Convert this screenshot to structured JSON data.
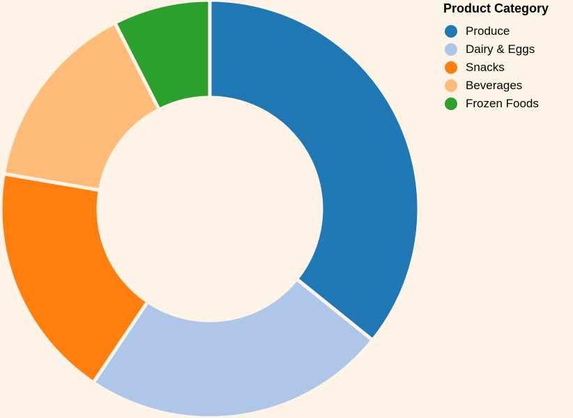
{
  "chart_data": {
    "type": "pie",
    "donut": true,
    "legend_title": "Product Category",
    "legend_position": "top-right",
    "series": [
      {
        "name": "Produce",
        "value": 35.8,
        "color": "#1f77b4"
      },
      {
        "name": "Dairy & Eggs",
        "value": 23.6,
        "color": "#aec7e8"
      },
      {
        "name": "Snacks",
        "value": 18.3,
        "color": "#ff7f0e"
      },
      {
        "name": "Beverages",
        "value": 14.8,
        "color": "#ffbb78"
      },
      {
        "name": "Frozen Foods",
        "value": 7.5,
        "color": "#2ca02c"
      }
    ]
  },
  "colors": {
    "background": "#fdf4e7"
  }
}
